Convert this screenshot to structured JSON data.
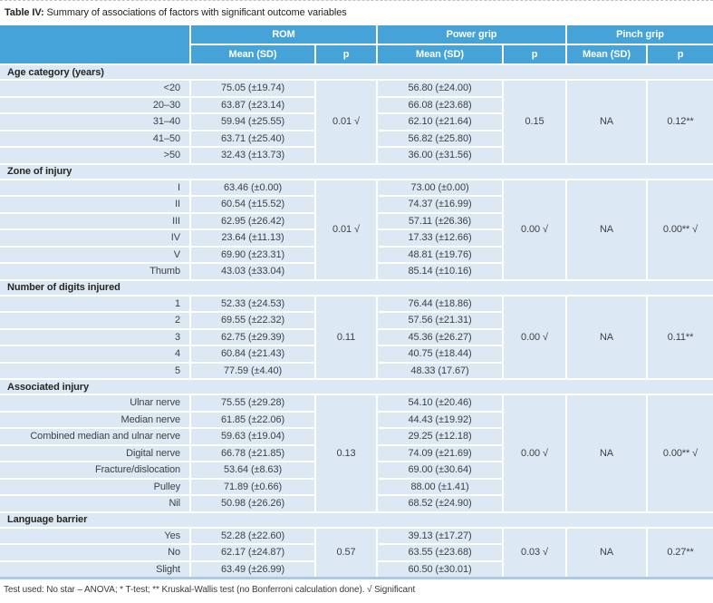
{
  "caption": {
    "label": "Table IV:",
    "text": "Summary of associations of factors with significant outcome variables"
  },
  "header": {
    "groups": [
      "ROM",
      "Power grip",
      "Pinch grip"
    ],
    "sub_mean": "Mean (SD)",
    "sub_p": "p"
  },
  "sections": [
    {
      "name": "Age category (years)",
      "rows": [
        {
          "label": "<20",
          "rom_mean": "75.05 (±19.74)",
          "pg_mean": "56.80 (±24.00)"
        },
        {
          "label": "20–30",
          "rom_mean": "63.87 (±23.14)",
          "pg_mean": "66.08 (±23.68)"
        },
        {
          "label": "31–40",
          "rom_mean": "59.94 (±25.55)",
          "pg_mean": "62.10 (±21.64)"
        },
        {
          "label": "41–50",
          "rom_mean": "63.71 (±25.40)",
          "pg_mean": "56.82 (±25.80)"
        },
        {
          "label": ">50",
          "rom_mean": "32.43 (±13.73)",
          "pg_mean": "36.00 (±31.56)"
        }
      ],
      "rom_p": "0.01 √",
      "pg_p": "0.15",
      "pinch_mean": "NA",
      "pinch_p": "0.12**"
    },
    {
      "name": "Zone of injury",
      "rows": [
        {
          "label": "I",
          "rom_mean": "63.46 (±0.00)",
          "pg_mean": "73.00 (±0.00)"
        },
        {
          "label": "II",
          "rom_mean": "60.54 (±15.52)",
          "pg_mean": "74.37 (±16.99)"
        },
        {
          "label": "III",
          "rom_mean": "62.95 (±26.42)",
          "pg_mean": "57.11 (±26.36)"
        },
        {
          "label": "IV",
          "rom_mean": "23.64 (±11.13)",
          "pg_mean": "17.33 (±12.66)"
        },
        {
          "label": "V",
          "rom_mean": "69.90 (±23.31)",
          "pg_mean": "48.81 (±19.76)"
        },
        {
          "label": "Thumb",
          "rom_mean": "43.03 (±33.04)",
          "pg_mean": "85.14 (±10.16)"
        }
      ],
      "rom_p": "0.01 √",
      "pg_p": "0.00 √",
      "pinch_mean": "NA",
      "pinch_p": "0.00** √"
    },
    {
      "name": "Number of digits injured",
      "rows": [
        {
          "label": "1",
          "rom_mean": "52.33 (±24.53)",
          "pg_mean": "76.44 (±18.86)"
        },
        {
          "label": "2",
          "rom_mean": "69.55 (±22.32)",
          "pg_mean": "57.56 (±21.31)"
        },
        {
          "label": "3",
          "rom_mean": "62.75 (±29.39)",
          "pg_mean": "45.36 (±26.27)"
        },
        {
          "label": "4",
          "rom_mean": "60.84 (±21.43)",
          "pg_mean": "40.75 (±18.44)"
        },
        {
          "label": "5",
          "rom_mean": "77.59 (±4.40)",
          "pg_mean": "48.33 (17.67)"
        }
      ],
      "rom_p": "0.11",
      "pg_p": "0.00 √",
      "pinch_mean": "NA",
      "pinch_p": "0.11**"
    },
    {
      "name": "Associated injury",
      "rows": [
        {
          "label": "Ulnar nerve",
          "rom_mean": "75.55 (±29.28)",
          "pg_mean": "54.10 (±20.46)"
        },
        {
          "label": "Median nerve",
          "rom_mean": "61.85 (±22.06)",
          "pg_mean": "44.43 (±19.92)"
        },
        {
          "label": "Combined median and ulnar nerve",
          "rom_mean": "59.63 (±19.04)",
          "pg_mean": "29.25 (±12.18)"
        },
        {
          "label": "Digital nerve",
          "rom_mean": "66.78 (±21.85)",
          "pg_mean": "74.09 (±21.69)"
        },
        {
          "label": "Fracture/dislocation",
          "rom_mean": "53.64 (±8.63)",
          "pg_mean": "69.00 (±30.64)"
        },
        {
          "label": "Pulley",
          "rom_mean": "71.89 (±0.66)",
          "pg_mean": "88.00 (±1.41)"
        },
        {
          "label": "Nil",
          "rom_mean": "50.98 (±26.26)",
          "pg_mean": "68.52 (±24.90)"
        }
      ],
      "rom_p": "0.13",
      "pg_p": "0.00 √",
      "pinch_mean": "NA",
      "pinch_p": "0.00** √"
    },
    {
      "name": "Language barrier",
      "rows": [
        {
          "label": "Yes",
          "rom_mean": "52.28 (±22.60)",
          "pg_mean": "39.13 (±17.27)"
        },
        {
          "label": "No",
          "rom_mean": "62.17 (±24.87)",
          "pg_mean": "63.55 (±23.68)"
        },
        {
          "label": "Slight",
          "rom_mean": "63.49 (±26.99)",
          "pg_mean": "60.50 (±30.01)"
        }
      ],
      "rom_p": "0.57",
      "pg_p": "0.03 √",
      "pinch_mean": "NA",
      "pinch_p": "0.27**"
    }
  ],
  "footnote": "Test used: No star – ANOVA; * T-test; ** Kruskal-Wallis test (no Bonferroni calculation done). √ Significant",
  "colors": {
    "header_blue": "#45a3d7",
    "body_light_blue": "#dce8f4",
    "bottom_edge_blue": "#a7cae6",
    "header_text": "#ffffff",
    "body_text": "#3d4144"
  }
}
